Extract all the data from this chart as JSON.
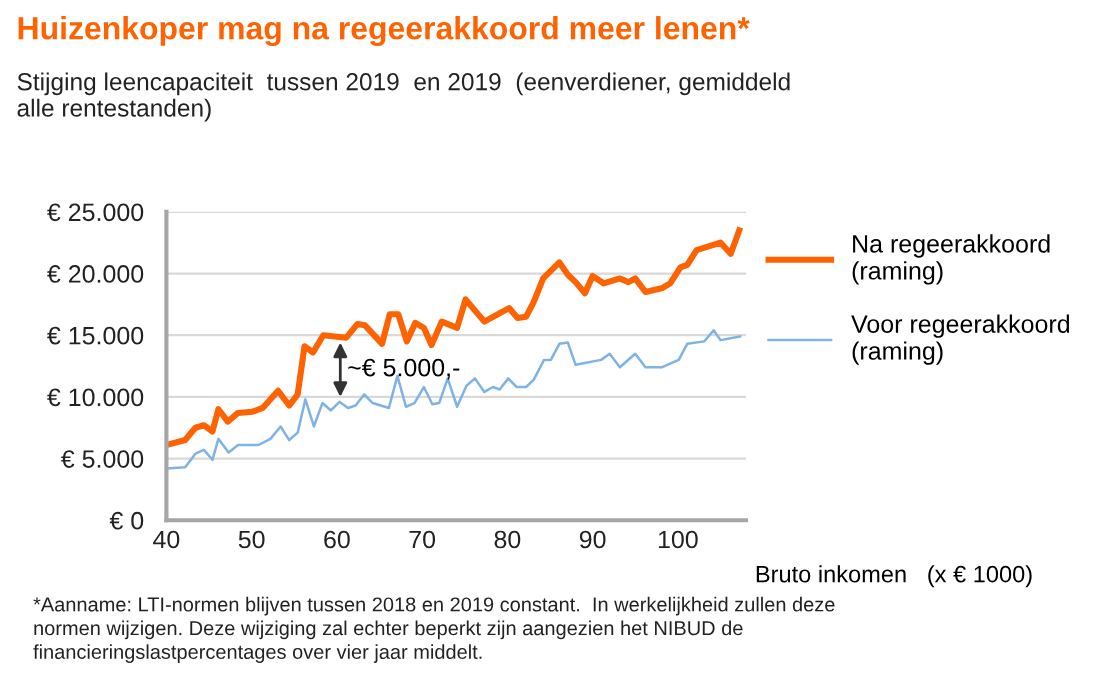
{
  "chart_data": {
    "type": "line",
    "title": "Huizenkoper mag na regeerakkoord meer lenen*",
    "subtitle": "Stijging leencapaciteit  tussen 2019  en 2019  (eenverdiener, gemiddeld\nalle rentestanden)",
    "xlabel": "Bruto inkomen   (x € 1000)",
    "series": [
      {
        "name": "Na regeerakkoord\n(raming)",
        "color": "#ff6200",
        "x": [
          40,
          42.2,
          43.4,
          44.4,
          45.4,
          46.1,
          47.2,
          48.4,
          50.1,
          51.3,
          53.1,
          54.4,
          55.4,
          56.2,
          57.2,
          58.4,
          61.1,
          62.4,
          63.3,
          65.3,
          66.2,
          67.2,
          68.2,
          69.2,
          70.2,
          71.1,
          72.3,
          74.1,
          75.1,
          77.3,
          80.2,
          81.2,
          82.2,
          83.1,
          84.2,
          86.1,
          87.1,
          88,
          89.1,
          90,
          91.3,
          93.2,
          94.2,
          95,
          96.2,
          98.1,
          99.1,
          100.3,
          101.1,
          102.2,
          105,
          106.2,
          107.2
        ],
        "values": [
          6100,
          6500,
          7500,
          7700,
          7200,
          9000,
          8000,
          8700,
          8800,
          9100,
          10500,
          9300,
          10200,
          14100,
          13600,
          15000,
          14800,
          15900,
          15800,
          14300,
          16700,
          16700,
          14500,
          16000,
          15600,
          14200,
          16100,
          15600,
          17900,
          16100,
          17200,
          16400,
          16500,
          17700,
          19600,
          20900,
          19900,
          19300,
          18400,
          19800,
          19200,
          19600,
          19300,
          19600,
          18500,
          18800,
          19200,
          20500,
          20700,
          21900,
          22500,
          21600,
          23500
        ]
      },
      {
        "name": "Voor regeerakkoord\n(raming)",
        "color": "#7fb2e5",
        "x": [
          40,
          42.2,
          43.4,
          44.4,
          45.4,
          46.1,
          47.3,
          48.4,
          50.8,
          52.2,
          53.4,
          54.4,
          55.4,
          56.3,
          57.3,
          58.3,
          59.3,
          60.3,
          61.3,
          62.2,
          63.2,
          64.2,
          66.1,
          67.1,
          68.1,
          69.1,
          70.2,
          71.2,
          72,
          73,
          74.1,
          75.2,
          76.2,
          77.3,
          78.3,
          79.1,
          80.1,
          81.1,
          82.2,
          83.1,
          84.3,
          85.1,
          86.1,
          87.1,
          88,
          91,
          92,
          93.2,
          95,
          96.2,
          98.1,
          100.1,
          101.1,
          103.1,
          104.2,
          105,
          107.3
        ],
        "values": [
          4200,
          4300,
          5400,
          5700,
          4900,
          6600,
          5500,
          6100,
          6100,
          6600,
          7600,
          6500,
          7100,
          9800,
          7600,
          9500,
          8900,
          9600,
          9100,
          9300,
          10200,
          9500,
          9100,
          11700,
          9200,
          9500,
          10800,
          9400,
          9500,
          11500,
          9200,
          10900,
          11500,
          10400,
          10800,
          10600,
          11500,
          10800,
          10800,
          11400,
          13000,
          13000,
          14300,
          14400,
          12600,
          13000,
          13500,
          12400,
          13500,
          12400,
          12400,
          13000,
          14300,
          14500,
          15400,
          14600,
          14900
        ]
      }
    ],
    "xlim": [
      40,
      108
    ],
    "xticks": [
      40,
      50,
      60,
      70,
      80,
      90,
      100
    ],
    "ylim": [
      0,
      25000
    ],
    "yticks": [
      {
        "value": 0,
        "label": "€ 0"
      },
      {
        "value": 5000,
        "label": "€ 5.000"
      },
      {
        "value": 10000,
        "label": "€ 10.000"
      },
      {
        "value": 15000,
        "label": "€ 15.000"
      },
      {
        "value": 20000,
        "label": "€ 20.000"
      },
      {
        "value": 25000,
        "label": "€ 25.000"
      }
    ],
    "grid": "y",
    "legend": "right",
    "marker": "none",
    "line_style": "solid",
    "annotations": [
      "~€ 5.000,-",
      "*Aanname: LTI-normen blijven tussen 2018 en 2019 constant.  In werkelijkheid zullen deze\nnormen wijzigen. Deze wijziging zal echter beperkt zijn aangezien het NIBUD de\nfinancieringslastpercentages over vier jaar middelt."
    ]
  }
}
